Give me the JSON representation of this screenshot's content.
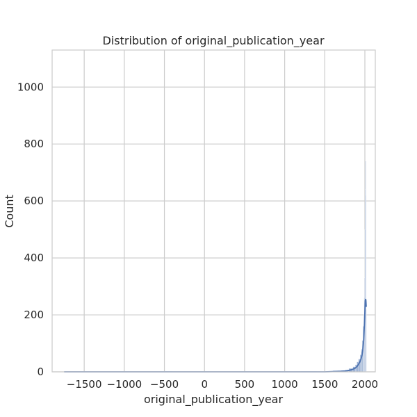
{
  "chart_data": {
    "type": "bar",
    "title": "Distribution of original_publication_year",
    "xlabel": "original_publication_year",
    "ylabel": "Count",
    "xlim": [
      -1900,
      2130
    ],
    "ylim": [
      0,
      1130
    ],
    "xticks": [
      -1500,
      -1000,
      -500,
      0,
      500,
      1000,
      1500,
      2000
    ],
    "yticks": [
      0,
      200,
      400,
      600,
      800,
      1000
    ],
    "xtick_labels": [
      "−1500",
      "−1000",
      "−500",
      "0",
      "500",
      "1000",
      "1500",
      "2000"
    ],
    "ytick_labels": [
      "0",
      "200",
      "400",
      "600",
      "800",
      "1000"
    ],
    "grid": true,
    "bar_color": "#4c72b0",
    "kde_color": "#4c72b0",
    "bins": [
      {
        "x0": -1750,
        "x1": -1730,
        "count": 1
      },
      {
        "x0": -750,
        "x1": -730,
        "count": 1
      },
      {
        "x0": -500,
        "x1": -400,
        "count": 2
      },
      {
        "x0": -100,
        "x1": 0,
        "count": 1
      },
      {
        "x0": 1200,
        "x1": 1400,
        "count": 2
      },
      {
        "x0": 1500,
        "x1": 1600,
        "count": 2
      },
      {
        "x0": 1600,
        "x1": 1700,
        "count": 4
      },
      {
        "x0": 1700,
        "x1": 1750,
        "count": 4
      },
      {
        "x0": 1750,
        "x1": 1800,
        "count": 6
      },
      {
        "x0": 1800,
        "x1": 1850,
        "count": 12
      },
      {
        "x0": 1850,
        "x1": 1880,
        "count": 18
      },
      {
        "x0": 1880,
        "x1": 1900,
        "count": 25
      },
      {
        "x0": 1900,
        "x1": 1920,
        "count": 35
      },
      {
        "x0": 1920,
        "x1": 1940,
        "count": 45
      },
      {
        "x0": 1940,
        "x1": 1955,
        "count": 60
      },
      {
        "x0": 1955,
        "x1": 1965,
        "count": 80
      },
      {
        "x0": 1965,
        "x1": 1975,
        "count": 110
      },
      {
        "x0": 1975,
        "x1": 1985,
        "count": 160
      },
      {
        "x0": 1985,
        "x1": 1990,
        "count": 200
      },
      {
        "x0": 1990,
        "x1": 1995,
        "count": 260
      },
      {
        "x0": 1995,
        "x1": 1999,
        "count": 330
      },
      {
        "x0": 1999,
        "x1": 2003,
        "count": 500
      },
      {
        "x0": 2003,
        "x1": 2006,
        "count": 640
      },
      {
        "x0": 2006,
        "x1": 2010,
        "count": 740
      },
      {
        "x0": 2010,
        "x1": 2013,
        "count": 620
      },
      {
        "x0": 2013,
        "x1": 2017,
        "count": 220
      }
    ],
    "kde": {
      "x": [
        -1750,
        1500,
        1600,
        1700,
        1750,
        1800,
        1850,
        1880,
        1900,
        1920,
        1940,
        1955,
        1965,
        1975,
        1985,
        1995,
        2005,
        2010,
        2013,
        2017
      ],
      "y": [
        0,
        0,
        1,
        2,
        3,
        5,
        9,
        13,
        18,
        26,
        36,
        48,
        60,
        80,
        110,
        170,
        250,
        256,
        250,
        228
      ]
    }
  }
}
